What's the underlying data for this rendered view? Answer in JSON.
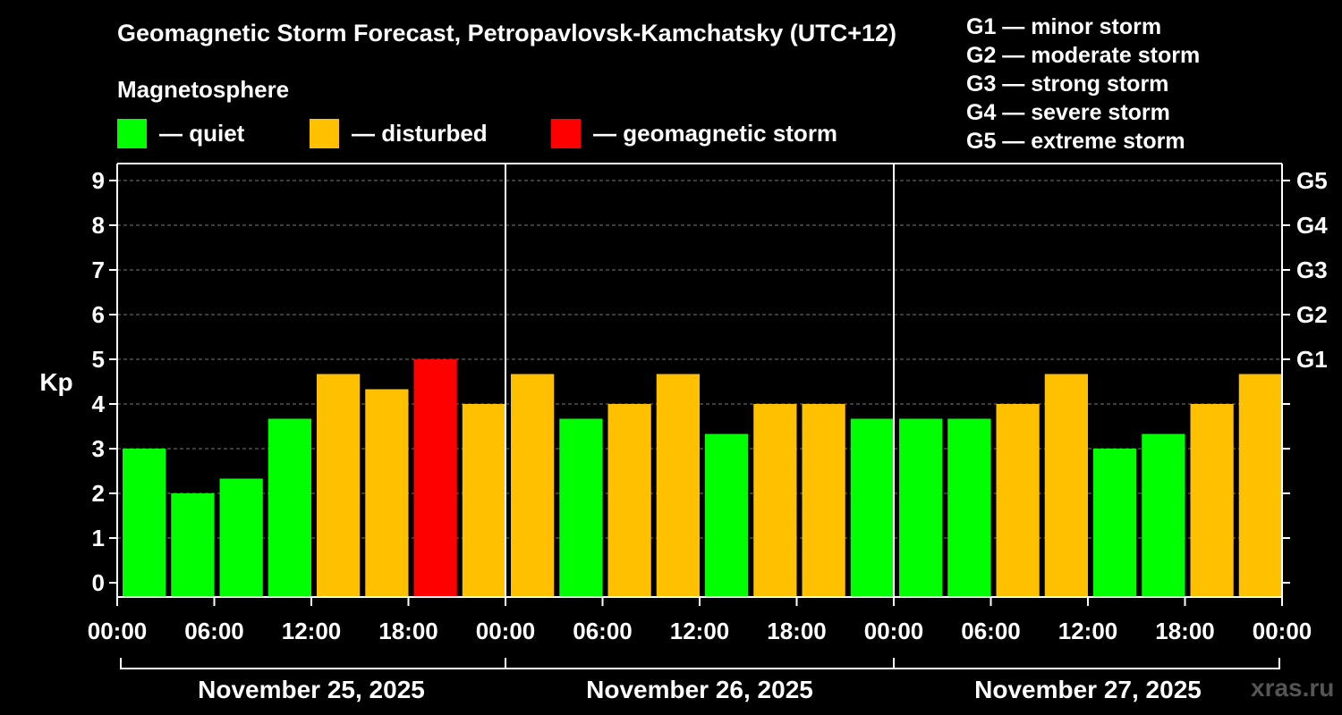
{
  "header": {
    "title": "Geomagnetic Storm Forecast, Petropavlovsk-Kamchatsky (UTC+12)",
    "subtitle": "Magnetosphere"
  },
  "legend": [
    {
      "label": "— quiet",
      "color": "#00ff00"
    },
    {
      "label": "— disturbed",
      "color": "#ffc000"
    },
    {
      "label": "— geomagnetic storm",
      "color": "#ff0000"
    }
  ],
  "storm_scale": [
    "G1 — minor storm",
    "G2 — moderate storm",
    "G3 — strong storm",
    "G4 — severe storm",
    "G5 — extreme storm"
  ],
  "watermark": "xras.ru",
  "chart_data": {
    "type": "bar",
    "title": "Geomagnetic Storm Forecast, Petropavlovsk-Kamchatsky (UTC+12)",
    "ylabel": "Kp",
    "ylim": [
      0,
      9
    ],
    "yticks": [
      "0",
      "1",
      "2",
      "3",
      "4",
      "5",
      "6",
      "7",
      "8",
      "9"
    ],
    "right_ticks": [
      {
        "value": 5,
        "label": "G1"
      },
      {
        "value": 6,
        "label": "G2"
      },
      {
        "value": 7,
        "label": "G3"
      },
      {
        "value": 8,
        "label": "G4"
      },
      {
        "value": 9,
        "label": "G5"
      }
    ],
    "xticks": [
      "00:00",
      "06:00",
      "12:00",
      "18:00",
      "00:00",
      "06:00",
      "12:00",
      "18:00",
      "00:00",
      "06:00",
      "12:00",
      "18:00",
      "00:00"
    ],
    "days": [
      "November 25, 2025",
      "November 26, 2025",
      "November 27, 2025"
    ],
    "grid": true,
    "values": [
      3.0,
      2.0,
      2.33,
      3.67,
      4.67,
      4.33,
      5.0,
      4.0,
      4.67,
      3.67,
      4.0,
      4.67,
      3.33,
      4.0,
      4.0,
      3.67,
      3.67,
      3.67,
      4.0,
      4.67,
      3.0,
      3.33,
      4.0,
      4.67
    ],
    "levels": [
      "quiet",
      "quiet",
      "quiet",
      "quiet",
      "disturbed",
      "disturbed",
      "storm",
      "disturbed",
      "disturbed",
      "quiet",
      "disturbed",
      "disturbed",
      "quiet",
      "disturbed",
      "disturbed",
      "quiet",
      "quiet",
      "quiet",
      "disturbed",
      "disturbed",
      "quiet",
      "quiet",
      "disturbed",
      "disturbed"
    ],
    "level_colors": {
      "quiet": "#00ff00",
      "disturbed": "#ffc000",
      "storm": "#ff0000"
    }
  }
}
